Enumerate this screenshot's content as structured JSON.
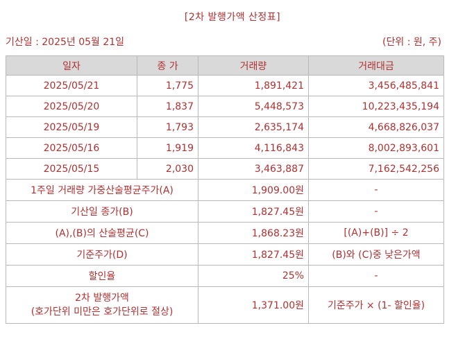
{
  "title": "[2차 발행가액 산정표]",
  "base_date_label": "기산일 : 2025년 05월 21일",
  "unit_label": "(단위 : 원, 주)",
  "headers": [
    "일자",
    "종 가",
    "거래량",
    "거래대금"
  ],
  "rows": [
    {
      "date": "2025/05/21",
      "close": "1,775",
      "volume": "1,891,421",
      "amount": "3,456,485,841"
    },
    {
      "date": "2025/05/20",
      "close": "1,837",
      "volume": "5,448,573",
      "amount": "10,223,435,194"
    },
    {
      "date": "2025/05/19",
      "close": "1,793",
      "volume": "2,635,174",
      "amount": "4,668,826,037"
    },
    {
      "date": "2025/05/16",
      "close": "1,919",
      "volume": "4,116,843",
      "amount": "8,002,893,601"
    },
    {
      "date": "2025/05/15",
      "close": "2,030",
      "volume": "3,463,887",
      "amount": "7,162,542,256"
    }
  ],
  "summary": [
    {
      "label": "1주일 거래량 가중산술평균주가(A)",
      "value": "1,909.00원",
      "note": "-"
    },
    {
      "label": "기산일 종가(B)",
      "value": "1,827.45원",
      "note": "-"
    },
    {
      "label": "(A),(B)의 산술평균(C)",
      "value": "1,868.23원",
      "note": "[(A)+(B)] ÷ 2"
    },
    {
      "label": "기준주가(D)",
      "value": "1,827.45원",
      "note": "(B)와 (C)중 낮은가액"
    },
    {
      "label": "할인율",
      "value": "25%",
      "note": "-"
    }
  ],
  "final": {
    "label_line1": "2차 발행가액",
    "label_line2": "(호가단위 미만은 호가단위로 절상)",
    "value": "1,371.00원",
    "note": "기준주가 × (1- 할인율)"
  }
}
